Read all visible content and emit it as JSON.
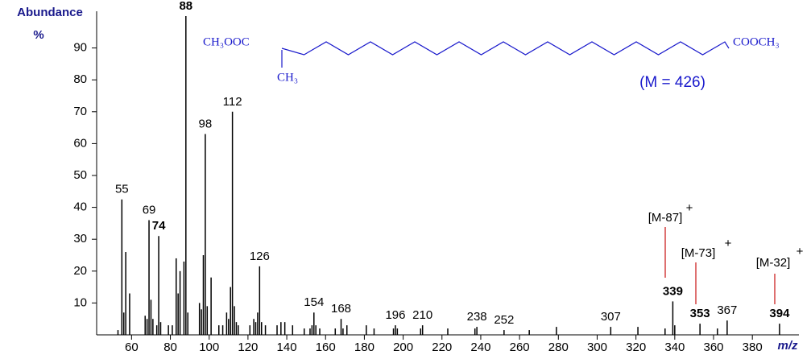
{
  "chart_data": {
    "type": "spectrum",
    "y_label": "Abundance",
    "y_unit": "%",
    "x_label": "m/z",
    "xlim": [
      42,
      404
    ],
    "ylim": [
      0,
      100
    ],
    "xticks": [
      60,
      80,
      100,
      120,
      140,
      160,
      180,
      200,
      220,
      240,
      260,
      280,
      300,
      320,
      340,
      360,
      380
    ],
    "yticks": [
      10,
      20,
      30,
      40,
      50,
      60,
      70,
      80,
      90
    ],
    "color": "#000000",
    "x": [
      53,
      55,
      56,
      57,
      59,
      67,
      68,
      69,
      70,
      71,
      73,
      74,
      75,
      79,
      81,
      83,
      84,
      85,
      87,
      88,
      89,
      95,
      96,
      97,
      98,
      99,
      101,
      105,
      107,
      109,
      110,
      111,
      112,
      113,
      114,
      115,
      121,
      123,
      124,
      125,
      126,
      127,
      129,
      135,
      137,
      139,
      143,
      149,
      152,
      153,
      154,
      155,
      157,
      165,
      168,
      169,
      171,
      181,
      185,
      195,
      196,
      197,
      209,
      210,
      223,
      237,
      238,
      252,
      265,
      279,
      307,
      321,
      335,
      339,
      340,
      353,
      362,
      367,
      394
    ],
    "values": [
      1.5,
      42.5,
      7,
      26,
      13,
      6,
      5,
      36,
      11,
      5,
      3,
      31,
      4,
      3,
      3,
      24,
      13,
      20,
      23,
      100,
      7,
      10,
      8,
      25,
      63,
      9,
      18,
      3,
      3,
      7,
      5,
      15,
      70,
      9,
      4,
      3,
      3,
      5,
      4,
      7,
      21.5,
      4,
      3,
      3,
      4,
      4,
      3,
      2,
      2,
      3,
      7,
      3,
      2,
      2,
      5,
      2,
      3,
      3,
      2,
      2,
      3,
      2,
      2,
      3,
      2,
      2,
      2.5,
      1.5,
      1.5,
      2.5,
      2.5,
      2.5,
      2,
      10.5,
      3,
      3.5,
      2,
      4.5,
      3.5
    ],
    "labels": [
      {
        "x": 55,
        "color": "#000000",
        "bold": false
      },
      {
        "x": 69,
        "color": "#000000",
        "bold": false
      },
      {
        "x": 74,
        "color": "#1e8a1e",
        "bold": true
      },
      {
        "x": 88,
        "color": "#1e8a1e",
        "bold": true
      },
      {
        "x": 98,
        "color": "#000000",
        "bold": false
      },
      {
        "x": 112,
        "color": "#000000",
        "bold": false
      },
      {
        "x": 126,
        "color": "#000000",
        "bold": false
      },
      {
        "x": 154,
        "color": "#000000",
        "bold": false
      },
      {
        "x": 168,
        "color": "#000000",
        "bold": false
      },
      {
        "x": 196,
        "color": "#000000",
        "bold": false
      },
      {
        "x": 210,
        "color": "#000000",
        "bold": false
      },
      {
        "x": 238,
        "color": "#000000",
        "bold": false
      },
      {
        "x": 252,
        "color": "#000000",
        "bold": false
      },
      {
        "x": 307,
        "color": "#000000",
        "bold": false
      },
      {
        "x": 339,
        "color": "#1e8a1e",
        "bold": true
      },
      {
        "x": 353,
        "color": "#1e8a1e",
        "bold": true
      },
      {
        "x": 367,
        "color": "#000000",
        "bold": false
      },
      {
        "x": 394,
        "color": "#1a1a8c",
        "bold": true
      }
    ],
    "annotations": [
      {
        "text": "[M-87]",
        "sup": "+"
      },
      {
        "text": "[M-73]",
        "sup": "+"
      },
      {
        "text": "[M-32]",
        "sup": "+"
      }
    ],
    "molecular_ion": "(M = 426)",
    "structure": {
      "left": "CH₃OOC",
      "branch": "CH₃",
      "right": "COOCH₃"
    }
  }
}
